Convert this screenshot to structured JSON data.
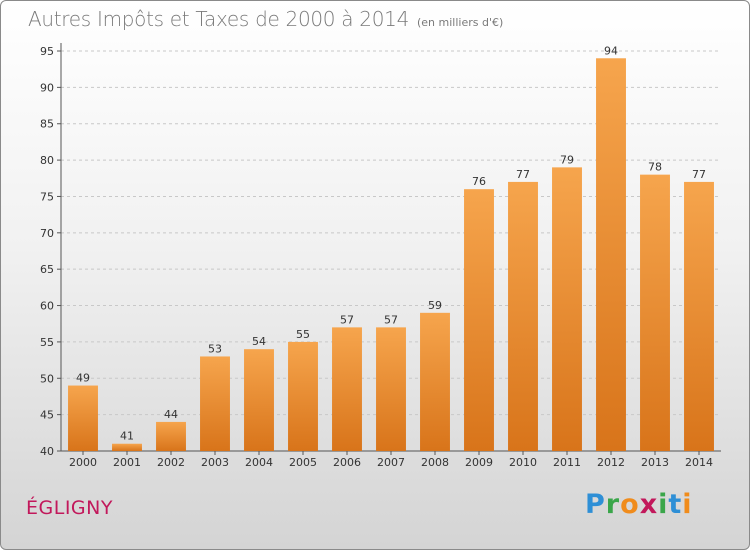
{
  "header": {
    "title": "Autres Impôts et Taxes de 2000 à 2014",
    "subtitle": "(en milliers d'€)"
  },
  "footer": {
    "commune": "ÉGLIGNY",
    "logo": [
      "P",
      "r",
      "o",
      "x",
      "i",
      "t",
      "i"
    ]
  },
  "colors": {
    "bar_light": "#f6a54d",
    "bar_dark": "#d8741a",
    "grid": "#c8c8c8",
    "axis": "#555555",
    "title": "#7a7a7a",
    "commune": "#c2185b"
  },
  "chart_data": {
    "type": "bar",
    "title": "Autres Impôts et Taxes de 2000 à 2014",
    "subtitle": "(en milliers d'€)",
    "xlabel": "",
    "ylabel": "",
    "categories": [
      "2000",
      "2001",
      "2002",
      "2003",
      "2004",
      "2005",
      "2006",
      "2007",
      "2008",
      "2009",
      "2010",
      "2011",
      "2012",
      "2013",
      "2014"
    ],
    "values": [
      49,
      41,
      44,
      53,
      54,
      55,
      57,
      57,
      59,
      76,
      77,
      79,
      94,
      78,
      77
    ],
    "ylim": [
      40,
      95
    ],
    "yticks": [
      40,
      45,
      50,
      55,
      60,
      65,
      70,
      75,
      80,
      85,
      90,
      95
    ],
    "grid": "horizontal dashed",
    "legend": "none"
  }
}
